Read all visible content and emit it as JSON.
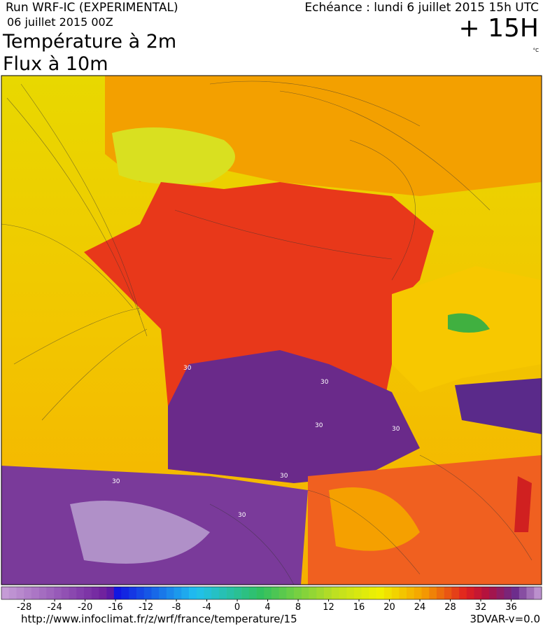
{
  "header": {
    "run": "Run WRF-IC (EXPERIMENTAL)",
    "date": "06 juillet 2015 00Z",
    "field": "Température à 2m",
    "field2": "Flux à 10m",
    "echeance": "Echéance : lundi 6 juillet 2015 15h UTC",
    "lead": "+ 15H",
    "unit": "°C"
  },
  "map": {
    "contour_labels": [
      "30",
      "30",
      "30",
      "30",
      "30",
      "30",
      "30"
    ]
  },
  "colorbar": {
    "range": [
      -31,
      40
    ],
    "ticks": [
      -28,
      -24,
      -20,
      -16,
      -12,
      -8,
      -4,
      0,
      4,
      8,
      12,
      16,
      20,
      24,
      28,
      32,
      36
    ]
  },
  "footer": {
    "url": "http://www.infoclimat.fr/z/wrf/france/temperature/15",
    "version": "3DVAR-v=0.0"
  }
}
